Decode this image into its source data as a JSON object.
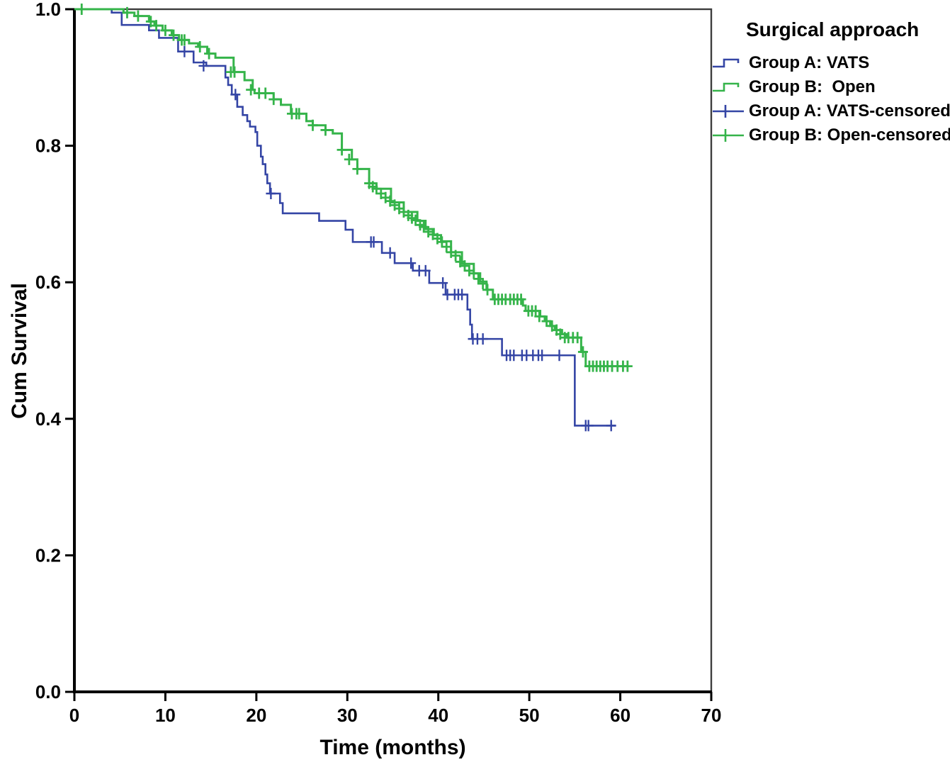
{
  "chart_data": {
    "type": "line",
    "subtype": "kaplan-meier-step",
    "xlabel": "Time (months)",
    "ylabel": "Cum Survival",
    "xlim": [
      0,
      70
    ],
    "ylim": [
      0.0,
      1.0
    ],
    "xticks": [
      "0",
      "10",
      "20",
      "30",
      "40",
      "50",
      "60",
      "70"
    ],
    "xtick_values": [
      0,
      10,
      20,
      30,
      40,
      50,
      60,
      70
    ],
    "ytick_labels": [
      "0.0",
      "0.2",
      "0.4",
      "0.6",
      "0.8",
      "1.0"
    ],
    "ytick_values": [
      0.0,
      0.2,
      0.4,
      0.6,
      0.8,
      1.0
    ],
    "grid": false,
    "frame_color": "#3d3d3d",
    "axis_color": "#000000",
    "legend_position": "outside-upper-right",
    "legend": {
      "title": "Surgical approach",
      "items": [
        {
          "label": "Group A: VATS",
          "swatch": "step",
          "series": 0
        },
        {
          "label": "Group B:  Open",
          "swatch": "step",
          "series": 1
        },
        {
          "label": "Group A: VATS-censored",
          "swatch": "plus",
          "series": 0
        },
        {
          "label": "Group B: Open-censored",
          "swatch": "plus",
          "series": 1
        }
      ]
    },
    "series": [
      {
        "name": "Group A: VATS",
        "color": "#3445a5",
        "line_width": 2.6,
        "end_t": 59.5,
        "steps": [
          [
            0,
            1.0
          ],
          [
            4.1,
            0.995
          ],
          [
            5.2,
            0.977
          ],
          [
            8.2,
            0.969
          ],
          [
            9.3,
            0.958
          ],
          [
            11.4,
            0.938
          ],
          [
            13.1,
            0.922
          ],
          [
            14.5,
            0.917
          ],
          [
            16.6,
            0.9
          ],
          [
            16.9,
            0.889
          ],
          [
            17.3,
            0.875
          ],
          [
            17.9,
            0.857
          ],
          [
            18.5,
            0.845
          ],
          [
            19.0,
            0.836
          ],
          [
            19.3,
            0.828
          ],
          [
            19.9,
            0.82
          ],
          [
            20.1,
            0.8
          ],
          [
            20.5,
            0.784
          ],
          [
            20.7,
            0.773
          ],
          [
            21.0,
            0.758
          ],
          [
            21.2,
            0.745
          ],
          [
            21.5,
            0.73
          ],
          [
            22.6,
            0.716
          ],
          [
            22.9,
            0.701
          ],
          [
            26.9,
            0.69
          ],
          [
            29.8,
            0.677
          ],
          [
            30.6,
            0.659
          ],
          [
            33.8,
            0.643
          ],
          [
            35.2,
            0.628
          ],
          [
            37.2,
            0.617
          ],
          [
            39.0,
            0.599
          ],
          [
            40.8,
            0.582
          ],
          [
            43.2,
            0.56
          ],
          [
            43.5,
            0.538
          ],
          [
            43.7,
            0.517
          ],
          [
            47.0,
            0.493
          ],
          [
            55.0,
            0.39
          ]
        ],
        "censored": [
          [
            12.1,
            0.938
          ],
          [
            14.2,
            0.917
          ],
          [
            17.7,
            0.875
          ],
          [
            21.6,
            0.73
          ],
          [
            32.6,
            0.659
          ],
          [
            32.9,
            0.659
          ],
          [
            34.7,
            0.643
          ],
          [
            37.0,
            0.628
          ],
          [
            37.9,
            0.617
          ],
          [
            38.6,
            0.617
          ],
          [
            40.5,
            0.599
          ],
          [
            41.0,
            0.582
          ],
          [
            41.8,
            0.582
          ],
          [
            42.2,
            0.582
          ],
          [
            42.6,
            0.582
          ],
          [
            43.8,
            0.517
          ],
          [
            44.3,
            0.517
          ],
          [
            44.9,
            0.517
          ],
          [
            47.5,
            0.493
          ],
          [
            47.9,
            0.493
          ],
          [
            48.3,
            0.493
          ],
          [
            49.2,
            0.493
          ],
          [
            49.7,
            0.493
          ],
          [
            50.4,
            0.493
          ],
          [
            51.0,
            0.493
          ],
          [
            51.4,
            0.493
          ],
          [
            53.3,
            0.493
          ],
          [
            56.2,
            0.39
          ],
          [
            56.5,
            0.39
          ],
          [
            59.0,
            0.39
          ]
        ]
      },
      {
        "name": "Group B: Open",
        "color": "#35b44a",
        "line_width": 3,
        "end_t": 60.8,
        "steps": [
          [
            0,
            1.0
          ],
          [
            5.4,
            0.995
          ],
          [
            6.6,
            0.99
          ],
          [
            8.2,
            0.982
          ],
          [
            8.8,
            0.976
          ],
          [
            9.7,
            0.969
          ],
          [
            10.7,
            0.962
          ],
          [
            11.5,
            0.955
          ],
          [
            12.6,
            0.95
          ],
          [
            13.6,
            0.945
          ],
          [
            14.6,
            0.935
          ],
          [
            15.5,
            0.929
          ],
          [
            17.5,
            0.908
          ],
          [
            18.7,
            0.896
          ],
          [
            19.6,
            0.882
          ],
          [
            19.8,
            0.877
          ],
          [
            21.9,
            0.868
          ],
          [
            22.7,
            0.86
          ],
          [
            23.8,
            0.847
          ],
          [
            25.5,
            0.836
          ],
          [
            26.2,
            0.83
          ],
          [
            27.6,
            0.823
          ],
          [
            28.4,
            0.818
          ],
          [
            29.4,
            0.794
          ],
          [
            30.5,
            0.78
          ],
          [
            31.1,
            0.766
          ],
          [
            32.4,
            0.745
          ],
          [
            33.2,
            0.737
          ],
          [
            34.8,
            0.717
          ],
          [
            36.2,
            0.703
          ],
          [
            37.7,
            0.69
          ],
          [
            38.6,
            0.678
          ],
          [
            39.5,
            0.669
          ],
          [
            40.3,
            0.66
          ],
          [
            41.4,
            0.644
          ],
          [
            42.6,
            0.627
          ],
          [
            43.9,
            0.613
          ],
          [
            44.6,
            0.601
          ],
          [
            45.3,
            0.589
          ],
          [
            46.0,
            0.575
          ],
          [
            49.3,
            0.566
          ],
          [
            49.6,
            0.558
          ],
          [
            51.2,
            0.55
          ],
          [
            51.7,
            0.543
          ],
          [
            52.3,
            0.536
          ],
          [
            52.8,
            0.53
          ],
          [
            53.6,
            0.524
          ],
          [
            54.1,
            0.519
          ],
          [
            55.7,
            0.498
          ],
          [
            56.2,
            0.477
          ]
        ],
        "censored": [
          [
            0.8,
            1.0
          ],
          [
            5.8,
            0.995
          ],
          [
            7.0,
            0.99
          ],
          [
            8.4,
            0.982
          ],
          [
            9.0,
            0.976
          ],
          [
            10.0,
            0.969
          ],
          [
            10.9,
            0.962
          ],
          [
            11.8,
            0.955
          ],
          [
            12.1,
            0.955
          ],
          [
            13.8,
            0.945
          ],
          [
            14.8,
            0.935
          ],
          [
            17.2,
            0.908
          ],
          [
            17.6,
            0.908
          ],
          [
            19.4,
            0.882
          ],
          [
            20.3,
            0.877
          ],
          [
            21.0,
            0.877
          ],
          [
            21.9,
            0.868
          ],
          [
            23.9,
            0.847
          ],
          [
            24.4,
            0.847
          ],
          [
            24.7,
            0.847
          ],
          [
            26.2,
            0.83
          ],
          [
            27.6,
            0.823
          ],
          [
            29.4,
            0.794
          ],
          [
            30.2,
            0.78
          ],
          [
            31.1,
            0.766
          ],
          [
            32.4,
            0.745
          ],
          [
            32.8,
            0.74
          ],
          [
            33.2,
            0.737
          ],
          [
            33.7,
            0.73
          ],
          [
            34.2,
            0.724
          ],
          [
            34.7,
            0.719
          ],
          [
            35.2,
            0.713
          ],
          [
            35.7,
            0.708
          ],
          [
            36.2,
            0.703
          ],
          [
            36.7,
            0.698
          ],
          [
            37.1,
            0.694
          ],
          [
            37.5,
            0.691
          ],
          [
            38.0,
            0.684
          ],
          [
            38.4,
            0.681
          ],
          [
            38.9,
            0.674
          ],
          [
            39.4,
            0.67
          ],
          [
            39.9,
            0.664
          ],
          [
            40.4,
            0.659
          ],
          [
            40.9,
            0.652
          ],
          [
            41.4,
            0.644
          ],
          [
            41.9,
            0.639
          ],
          [
            42.4,
            0.63
          ],
          [
            42.9,
            0.624
          ],
          [
            43.4,
            0.617
          ],
          [
            43.9,
            0.613
          ],
          [
            44.4,
            0.605
          ],
          [
            44.9,
            0.598
          ],
          [
            45.4,
            0.589
          ],
          [
            46.2,
            0.575
          ],
          [
            46.6,
            0.575
          ],
          [
            47.0,
            0.575
          ],
          [
            47.4,
            0.575
          ],
          [
            47.9,
            0.575
          ],
          [
            48.3,
            0.575
          ],
          [
            48.7,
            0.575
          ],
          [
            49.1,
            0.575
          ],
          [
            49.9,
            0.558
          ],
          [
            50.3,
            0.558
          ],
          [
            50.7,
            0.558
          ],
          [
            51.1,
            0.55
          ],
          [
            51.9,
            0.543
          ],
          [
            52.5,
            0.536
          ],
          [
            53.0,
            0.53
          ],
          [
            53.4,
            0.524
          ],
          [
            53.9,
            0.519
          ],
          [
            54.3,
            0.519
          ],
          [
            54.8,
            0.519
          ],
          [
            55.3,
            0.519
          ],
          [
            55.9,
            0.498
          ],
          [
            56.6,
            0.477
          ],
          [
            57.0,
            0.477
          ],
          [
            57.4,
            0.477
          ],
          [
            57.8,
            0.477
          ],
          [
            58.2,
            0.477
          ],
          [
            58.6,
            0.477
          ],
          [
            59.1,
            0.477
          ],
          [
            59.7,
            0.477
          ],
          [
            60.3,
            0.477
          ],
          [
            60.8,
            0.477
          ]
        ]
      }
    ]
  }
}
